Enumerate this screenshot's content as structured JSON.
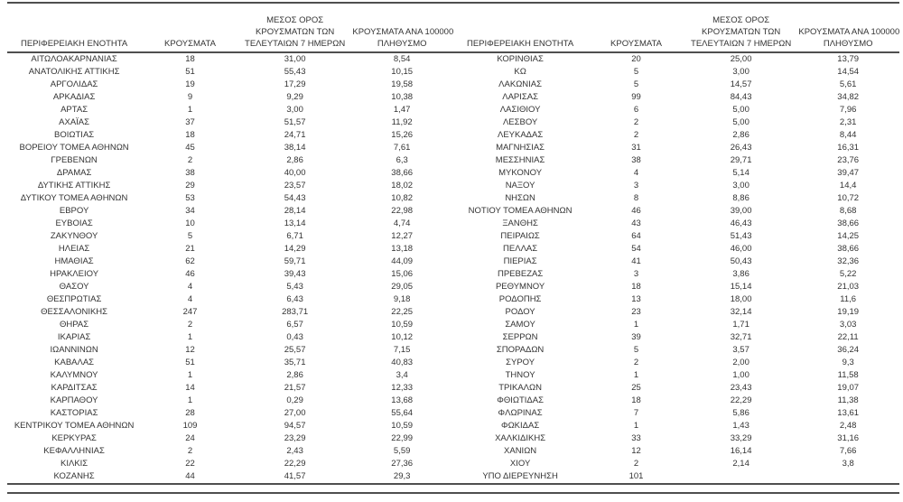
{
  "table": {
    "headers": {
      "region": "ΠΕΡΙΦΕΡΕΙΑΚΗ ΕΝΟΤΗΤΑ",
      "cases": "ΚΡΟΥΣΜΑΤΑ",
      "avg7_line1": "ΜΕΣΟΣ ΟΡΟΣ",
      "avg7_line2": "ΚΡΟΥΣΜΑΤΩΝ ΤΩΝ",
      "avg7_line3": "ΤΕΛΕΥΤΑΙΩΝ 7 ΗΜΕΡΩΝ",
      "per100k_line1": "ΚΡΟΥΣΜΑΤΑ ΑΝΑ 100000",
      "per100k_line2": "ΠΛΗΘΥΣΜΟ"
    },
    "left_rows": [
      [
        "ΑΙΤΩΛΟΑΚΑΡΝΑΝΙΑΣ",
        "18",
        "31,00",
        "8,54"
      ],
      [
        "ΑΝΑΤΟΛΙΚΗΣ ΑΤΤΙΚΗΣ",
        "51",
        "55,43",
        "10,15"
      ],
      [
        "ΑΡΓΟΛΙΔΑΣ",
        "19",
        "17,29",
        "19,58"
      ],
      [
        "ΑΡΚΑΔΙΑΣ",
        "9",
        "9,29",
        "10,38"
      ],
      [
        "ΑΡΤΑΣ",
        "1",
        "3,00",
        "1,47"
      ],
      [
        "ΑΧΑΪΑΣ",
        "37",
        "51,57",
        "11,92"
      ],
      [
        "ΒΟΙΩΤΙΑΣ",
        "18",
        "24,71",
        "15,26"
      ],
      [
        "ΒΟΡΕΙΟΥ ΤΟΜΕΑ ΑΘΗΝΩΝ",
        "45",
        "38,14",
        "7,61"
      ],
      [
        "ΓΡΕΒΕΝΩΝ",
        "2",
        "2,86",
        "6,3"
      ],
      [
        "ΔΡΑΜΑΣ",
        "38",
        "40,00",
        "38,66"
      ],
      [
        "ΔΥΤΙΚΗΣ ΑΤΤΙΚΗΣ",
        "29",
        "23,57",
        "18,02"
      ],
      [
        "ΔΥΤΙΚΟΥ ΤΟΜΕΑ ΑΘΗΝΩΝ",
        "53",
        "54,43",
        "10,82"
      ],
      [
        "ΕΒΡΟΥ",
        "34",
        "28,14",
        "22,98"
      ],
      [
        "ΕΥΒΟΙΑΣ",
        "10",
        "13,14",
        "4,74"
      ],
      [
        "ΖΑΚΥΝΘΟΥ",
        "5",
        "6,71",
        "12,27"
      ],
      [
        "ΗΛΕΙΑΣ",
        "21",
        "14,29",
        "13,18"
      ],
      [
        "ΗΜΑΘΙΑΣ",
        "62",
        "59,71",
        "44,09"
      ],
      [
        "ΗΡΑΚΛΕΙΟΥ",
        "46",
        "39,43",
        "15,06"
      ],
      [
        "ΘΑΣΟΥ",
        "4",
        "5,43",
        "29,05"
      ],
      [
        "ΘΕΣΠΡΩΤΙΑΣ",
        "4",
        "6,43",
        "9,18"
      ],
      [
        "ΘΕΣΣΑΛΟΝΙΚΗΣ",
        "247",
        "283,71",
        "22,25"
      ],
      [
        "ΘΗΡΑΣ",
        "2",
        "6,57",
        "10,59"
      ],
      [
        "ΙΚΑΡΙΑΣ",
        "1",
        "0,43",
        "10,12"
      ],
      [
        "ΙΩΑΝΝΙΝΩΝ",
        "12",
        "25,57",
        "7,15"
      ],
      [
        "ΚΑΒΑΛΑΣ",
        "51",
        "35,71",
        "40,83"
      ],
      [
        "ΚΑΛΥΜΝΟΥ",
        "1",
        "2,86",
        "3,4"
      ],
      [
        "ΚΑΡΔΙΤΣΑΣ",
        "14",
        "21,57",
        "12,33"
      ],
      [
        "ΚΑΡΠΑΘΟΥ",
        "1",
        "0,29",
        "13,68"
      ],
      [
        "ΚΑΣΤΟΡΙΑΣ",
        "28",
        "27,00",
        "55,64"
      ],
      [
        "ΚΕΝΤΡΙΚΟΥ ΤΟΜΕΑ ΑΘΗΝΩΝ",
        "109",
        "94,57",
        "10,59"
      ],
      [
        "ΚΕΡΚΥΡΑΣ",
        "24",
        "23,29",
        "22,99"
      ],
      [
        "ΚΕΦΑΛΛΗΝΙΑΣ",
        "2",
        "2,43",
        "5,59"
      ],
      [
        "ΚΙΛΚΙΣ",
        "22",
        "22,29",
        "27,36"
      ],
      [
        "ΚΟΖΑΝΗΣ",
        "44",
        "41,57",
        "29,3"
      ]
    ],
    "right_rows": [
      [
        "ΚΟΡΙΝΘΙΑΣ",
        "20",
        "25,00",
        "13,79"
      ],
      [
        "ΚΩ",
        "5",
        "3,00",
        "14,54"
      ],
      [
        "ΛΑΚΩΝΙΑΣ",
        "5",
        "14,57",
        "5,61"
      ],
      [
        "ΛΑΡΙΣΑΣ",
        "99",
        "84,43",
        "34,82"
      ],
      [
        "ΛΑΣΙΘΙΟΥ",
        "6",
        "5,00",
        "7,96"
      ],
      [
        "ΛΕΣΒΟΥ",
        "2",
        "5,00",
        "2,31"
      ],
      [
        "ΛΕΥΚΑΔΑΣ",
        "2",
        "2,86",
        "8,44"
      ],
      [
        "ΜΑΓΝΗΣΙΑΣ",
        "31",
        "26,43",
        "16,31"
      ],
      [
        "ΜΕΣΣΗΝΙΑΣ",
        "38",
        "29,71",
        "23,76"
      ],
      [
        "ΜΥΚΟΝΟΥ",
        "4",
        "5,14",
        "39,47"
      ],
      [
        "ΝΑΞΟΥ",
        "3",
        "3,00",
        "14,4"
      ],
      [
        "ΝΗΣΩΝ",
        "8",
        "8,86",
        "10,72"
      ],
      [
        "ΝΟΤΙΟΥ ΤΟΜΕΑ ΑΘΗΝΩΝ",
        "46",
        "39,00",
        "8,68"
      ],
      [
        "ΞΑΝΘΗΣ",
        "43",
        "46,43",
        "38,66"
      ],
      [
        "ΠΕΙΡΑΙΩΣ",
        "64",
        "51,43",
        "14,25"
      ],
      [
        "ΠΕΛΛΑΣ",
        "54",
        "46,00",
        "38,66"
      ],
      [
        "ΠΙΕΡΙΑΣ",
        "41",
        "50,43",
        "32,36"
      ],
      [
        "ΠΡΕΒΕΖΑΣ",
        "3",
        "3,86",
        "5,22"
      ],
      [
        "ΡΕΘΥΜΝΟΥ",
        "18",
        "15,14",
        "21,03"
      ],
      [
        "ΡΟΔΟΠΗΣ",
        "13",
        "18,00",
        "11,6"
      ],
      [
        "ΡΟΔΟΥ",
        "23",
        "32,14",
        "19,19"
      ],
      [
        "ΣΑΜΟΥ",
        "1",
        "1,71",
        "3,03"
      ],
      [
        "ΣΕΡΡΩΝ",
        "39",
        "32,71",
        "22,11"
      ],
      [
        "ΣΠΟΡΑΔΩΝ",
        "5",
        "3,57",
        "36,24"
      ],
      [
        "ΣΥΡΟΥ",
        "2",
        "2,00",
        "9,3"
      ],
      [
        "ΤΗΝΟΥ",
        "1",
        "1,00",
        "11,58"
      ],
      [
        "ΤΡΙΚΑΛΩΝ",
        "25",
        "23,43",
        "19,07"
      ],
      [
        "ΦΘΙΩΤΙΔΑΣ",
        "18",
        "22,29",
        "11,38"
      ],
      [
        "ΦΛΩΡΙΝΑΣ",
        "7",
        "5,86",
        "13,61"
      ],
      [
        "ΦΩΚΙΔΑΣ",
        "1",
        "1,43",
        "2,48"
      ],
      [
        "ΧΑΛΚΙΔΙΚΗΣ",
        "33",
        "33,29",
        "31,16"
      ],
      [
        "ΧΑΝΙΩΝ",
        "12",
        "16,14",
        "7,66"
      ],
      [
        "ΧΙΟΥ",
        "2",
        "2,14",
        "3,8"
      ],
      [
        "ΥΠΟ ΔΙΕΡΕΥΝΗΣΗ",
        "101",
        "",
        ""
      ]
    ]
  },
  "colors": {
    "background": "#ffffff",
    "text": "#333333",
    "rule": "#4f4f4f"
  }
}
